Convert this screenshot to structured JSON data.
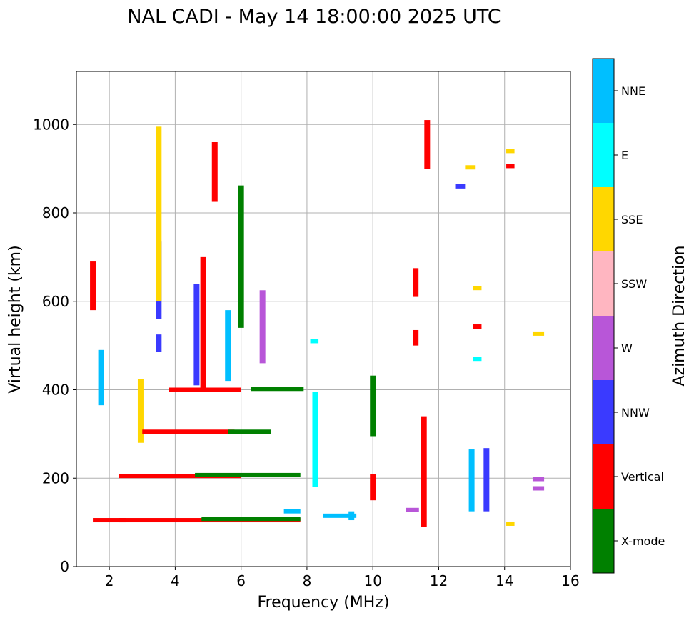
{
  "chart_data": {
    "type": "scatter",
    "title": "NAL CADI - May 14 18:00:00 2025 UTC",
    "xlabel": "Frequency (MHz)",
    "ylabel": "Virtual height (km)",
    "xlim": [
      1,
      16
    ],
    "ylim": [
      0,
      1120
    ],
    "xticks": [
      2,
      4,
      6,
      8,
      10,
      12,
      14,
      16
    ],
    "yticks": [
      0,
      200,
      400,
      600,
      800,
      1000
    ],
    "grid": true,
    "colorbar": {
      "title": "Azimuth Direction",
      "categories": [
        {
          "name": "X-mode",
          "color": "#008000"
        },
        {
          "name": "Vertical",
          "color": "#ff0000"
        },
        {
          "name": "NNW",
          "color": "#3a3aff"
        },
        {
          "name": "W",
          "color": "#b856d8"
        },
        {
          "name": "SSW",
          "color": "#ffb6c1"
        },
        {
          "name": "SSE",
          "color": "#ffd700"
        },
        {
          "name": "E",
          "color": "#00ffff"
        },
        {
          "name": "NNE",
          "color": "#00bfff"
        }
      ]
    },
    "segments": [
      {
        "cat": "NNE",
        "f": 13.0,
        "h0": 125,
        "h1": 265
      },
      {
        "cat": "NNW",
        "f": 13.45,
        "h0": 125,
        "h1": 268
      },
      {
        "cat": "Vertical",
        "f": 11.55,
        "h0": 90,
        "h1": 340
      },
      {
        "cat": "Vertical",
        "f": 11.3,
        "h0": 610,
        "h1": 675
      },
      {
        "cat": "Vertical",
        "f": 11.3,
        "h0": 500,
        "h1": 535
      },
      {
        "cat": "Vertical",
        "f": 10.0,
        "h0": 150,
        "h1": 210
      },
      {
        "cat": "X-mode",
        "f": 10.0,
        "h0": 295,
        "h1": 432
      },
      {
        "cat": "E",
        "f": 8.25,
        "h0": 180,
        "h1": 395
      },
      {
        "cat": "NNE",
        "f": 9.35,
        "h0": 105,
        "h1": 125
      },
      {
        "cat": "W",
        "f": 6.65,
        "h0": 460,
        "h1": 625
      },
      {
        "cat": "NNW",
        "f": 3.5,
        "h0": 560,
        "h1": 735
      },
      {
        "cat": "NNW",
        "f": 3.5,
        "h0": 485,
        "h1": 525
      },
      {
        "cat": "SSE",
        "f": 2.95,
        "h0": 280,
        "h1": 425
      },
      {
        "cat": "NNE",
        "f": 1.75,
        "h0": 365,
        "h1": 490
      },
      {
        "cat": "Vertical",
        "f": 4.85,
        "h0": 395,
        "h1": 700
      },
      {
        "cat": "NNW",
        "f": 4.65,
        "h0": 410,
        "h1": 640
      },
      {
        "cat": "NNE",
        "f": 5.6,
        "h0": 420,
        "h1": 580
      },
      {
        "cat": "X-mode",
        "f": 6.0,
        "h0": 540,
        "h1": 862
      },
      {
        "cat": "Vertical",
        "f": 5.2,
        "h0": 825,
        "h1": 960
      },
      {
        "cat": "SSE",
        "f": 3.5,
        "h0": 600,
        "h1": 995
      },
      {
        "cat": "Vertical",
        "f": 11.65,
        "h0": 900,
        "h1": 1010
      },
      {
        "cat": "Vertical",
        "f": 1.5,
        "h0": 580,
        "h1": 690
      }
    ],
    "bands": [
      {
        "cat": "Vertical",
        "f0": 2.3,
        "f1": 7.8,
        "h": 105
      },
      {
        "cat": "X-mode",
        "f0": 4.8,
        "f1": 7.8,
        "h": 108
      },
      {
        "cat": "NNE",
        "f0": 7.3,
        "f1": 7.8,
        "h": 125
      },
      {
        "cat": "Vertical",
        "f0": 1.5,
        "f1": 2.5,
        "h": 105
      },
      {
        "cat": "Vertical",
        "f0": 2.3,
        "f1": 6.0,
        "h": 205
      },
      {
        "cat": "X-mode",
        "f0": 4.6,
        "f1": 7.8,
        "h": 207
      },
      {
        "cat": "Vertical",
        "f0": 3.0,
        "f1": 5.8,
        "h": 305
      },
      {
        "cat": "X-mode",
        "f0": 5.6,
        "f1": 6.9,
        "h": 305
      },
      {
        "cat": "X-mode",
        "f0": 6.3,
        "f1": 7.9,
        "h": 402
      },
      {
        "cat": "Vertical",
        "f0": 3.8,
        "f1": 6.0,
        "h": 400
      },
      {
        "cat": "NNE",
        "f0": 8.5,
        "f1": 9.5,
        "h": 115
      },
      {
        "cat": "Vertical",
        "f0": 14.05,
        "f1": 14.3,
        "h": 906
      },
      {
        "cat": "SSE",
        "f0": 14.05,
        "f1": 14.3,
        "h": 940
      },
      {
        "cat": "SSE",
        "f0": 12.8,
        "f1": 13.1,
        "h": 903
      },
      {
        "cat": "NNW",
        "f0": 12.5,
        "f1": 12.8,
        "h": 860
      },
      {
        "cat": "SSE",
        "f0": 13.05,
        "f1": 13.3,
        "h": 630
      },
      {
        "cat": "Vertical",
        "f0": 13.05,
        "f1": 13.3,
        "h": 543
      },
      {
        "cat": "E",
        "f0": 13.05,
        "f1": 13.3,
        "h": 470
      },
      {
        "cat": "SSE",
        "f0": 14.85,
        "f1": 15.2,
        "h": 527
      },
      {
        "cat": "W",
        "f0": 14.85,
        "f1": 15.2,
        "h": 198
      },
      {
        "cat": "W",
        "f0": 14.85,
        "f1": 15.2,
        "h": 177
      },
      {
        "cat": "SSE",
        "f0": 14.05,
        "f1": 14.3,
        "h": 97
      },
      {
        "cat": "W",
        "f0": 11.0,
        "f1": 11.4,
        "h": 128
      },
      {
        "cat": "E",
        "f0": 8.1,
        "f1": 8.35,
        "h": 510
      }
    ]
  }
}
